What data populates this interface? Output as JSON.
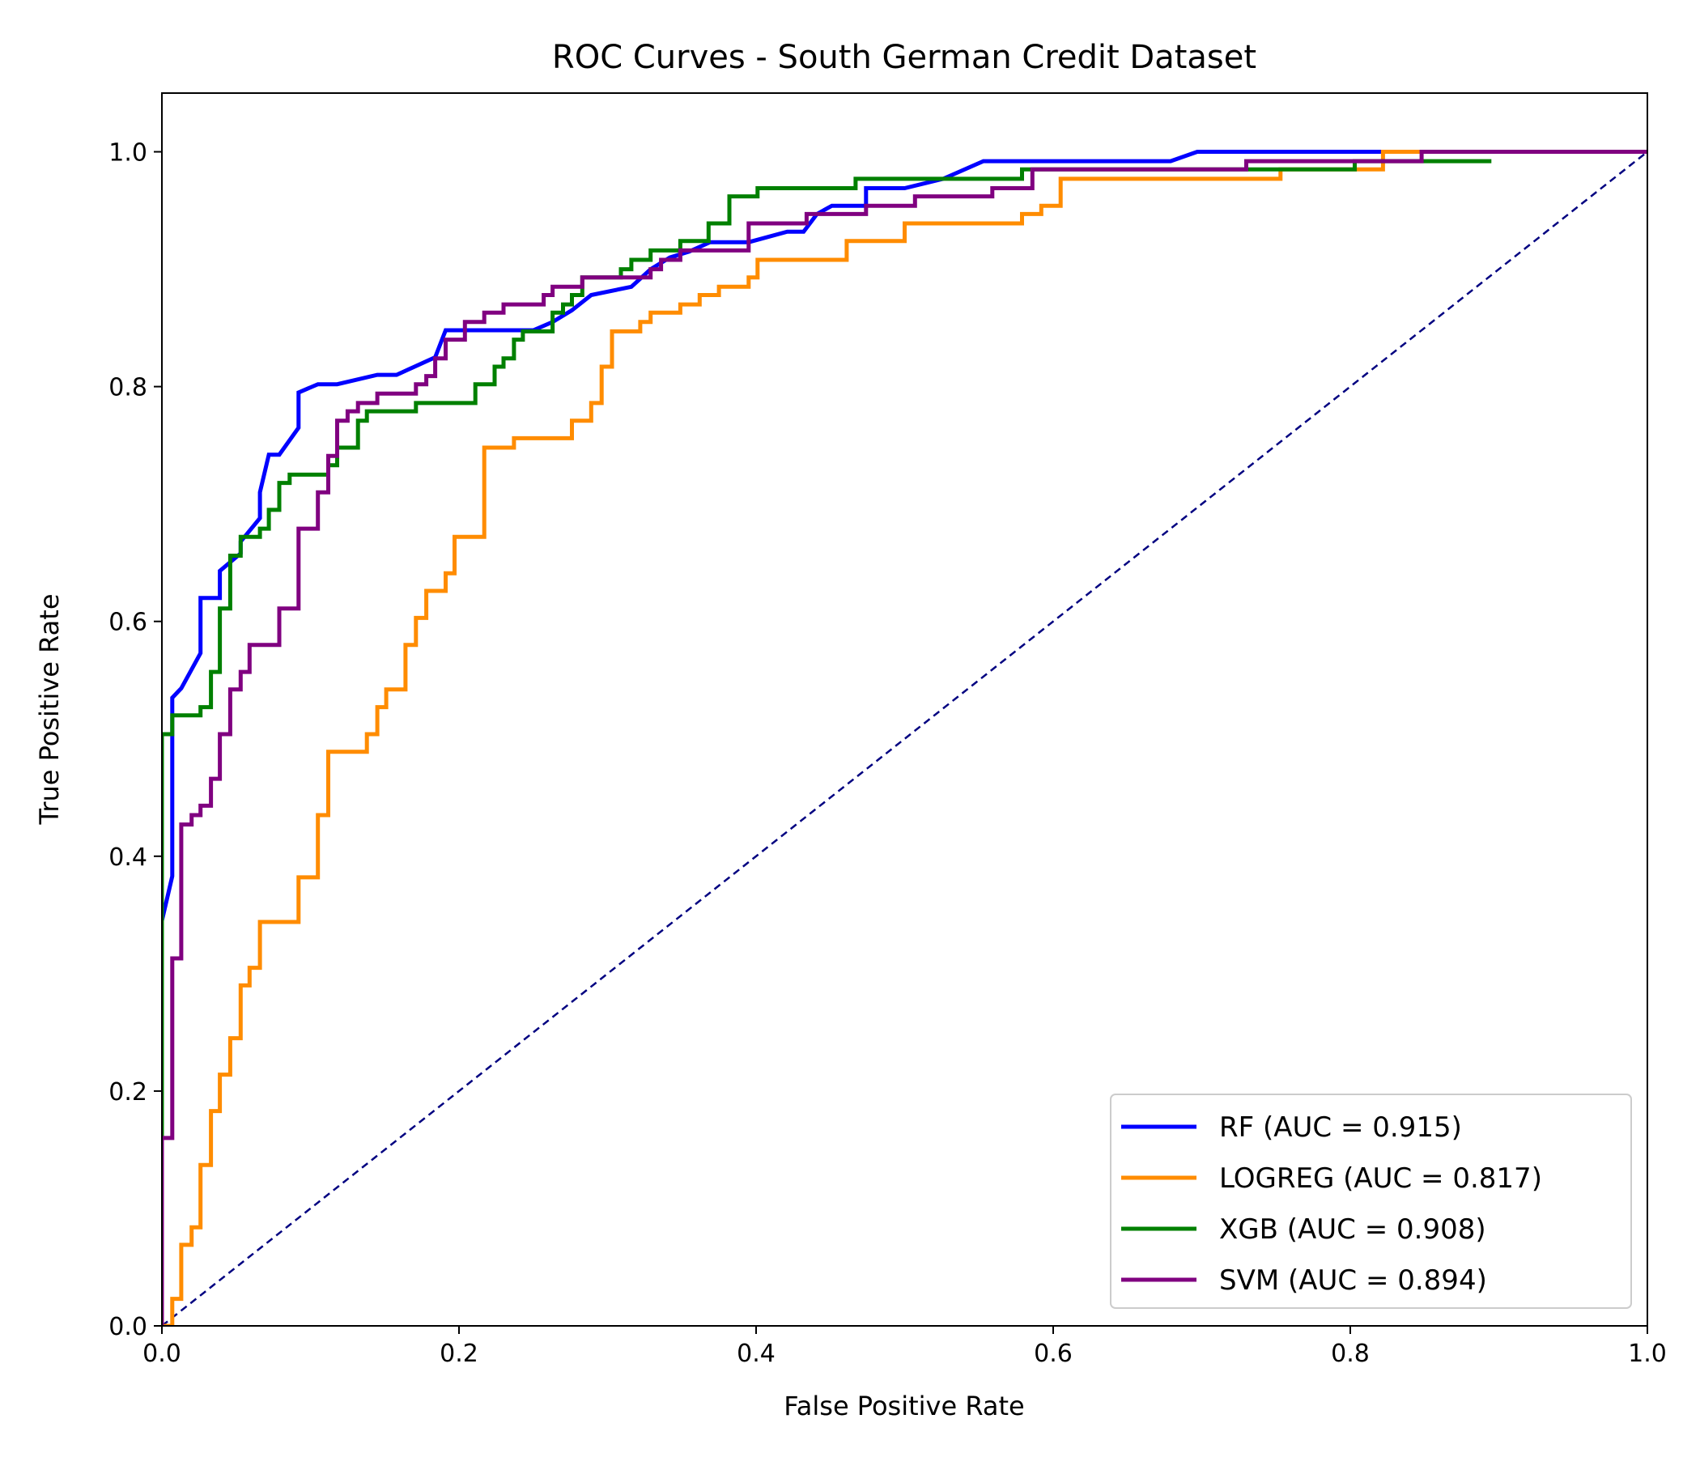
{
  "chart_data": {
    "type": "line",
    "title": "ROC Curves - South German Credit Dataset",
    "xlabel": "False Positive Rate",
    "ylabel": "True Positive Rate",
    "xlim": [
      0.0,
      1.0
    ],
    "ylim": [
      0.0,
      1.05
    ],
    "xticks": [
      0.0,
      0.2,
      0.4,
      0.6,
      0.8,
      1.0
    ],
    "yticks": [
      0.0,
      0.2,
      0.4,
      0.6,
      0.8,
      1.0
    ],
    "xtick_labels": [
      "0.0",
      "0.2",
      "0.4",
      "0.6",
      "0.8",
      "1.0"
    ],
    "ytick_labels": [
      "0.0",
      "0.2",
      "0.4",
      "0.6",
      "0.8",
      "1.0"
    ],
    "grid": false,
    "legend_position": "lower-right",
    "reference_line": {
      "x": [
        0,
        1
      ],
      "y": [
        0,
        1
      ],
      "color": "#000080",
      "style": "dashed"
    },
    "series": [
      {
        "name": "RF (AUC = 0.915)",
        "color": "#0000ff",
        "points": [
          [
            0,
            0.345
          ],
          [
            0.007,
            0.383
          ],
          [
            0.007,
            0.535
          ],
          [
            0.013,
            0.543
          ],
          [
            0.026,
            0.573
          ],
          [
            0.026,
            0.62
          ],
          [
            0.039,
            0.62
          ],
          [
            0.039,
            0.643
          ],
          [
            0.053,
            0.658
          ],
          [
            0.053,
            0.668
          ],
          [
            0.066,
            0.688
          ],
          [
            0.066,
            0.71
          ],
          [
            0.072,
            0.742
          ],
          [
            0.079,
            0.742
          ],
          [
            0.092,
            0.765
          ],
          [
            0.092,
            0.795
          ],
          [
            0.105,
            0.802
          ],
          [
            0.118,
            0.802
          ],
          [
            0.145,
            0.81
          ],
          [
            0.158,
            0.81
          ],
          [
            0.184,
            0.825
          ],
          [
            0.191,
            0.848
          ],
          [
            0.211,
            0.848
          ],
          [
            0.25,
            0.848
          ],
          [
            0.263,
            0.855
          ],
          [
            0.276,
            0.865
          ],
          [
            0.289,
            0.878
          ],
          [
            0.316,
            0.885
          ],
          [
            0.329,
            0.9
          ],
          [
            0.342,
            0.91
          ],
          [
            0.355,
            0.915
          ],
          [
            0.369,
            0.923
          ],
          [
            0.395,
            0.923
          ],
          [
            0.421,
            0.932
          ],
          [
            0.432,
            0.932
          ],
          [
            0.441,
            0.947
          ],
          [
            0.451,
            0.954
          ],
          [
            0.474,
            0.954
          ],
          [
            0.474,
            0.969
          ],
          [
            0.5,
            0.969
          ],
          [
            0.526,
            0.977
          ],
          [
            0.553,
            0.992
          ],
          [
            0.679,
            0.992
          ],
          [
            0.697,
            1.0
          ],
          [
            0.83,
            1.0
          ]
        ]
      },
      {
        "name": "LOGREG (AUC = 0.817)",
        "color": "#ff8c00",
        "points": [
          [
            0,
            0
          ],
          [
            0.007,
            0
          ],
          [
            0.007,
            0.023
          ],
          [
            0.013,
            0.023
          ],
          [
            0.013,
            0.069
          ],
          [
            0.02,
            0.069
          ],
          [
            0.02,
            0.084
          ],
          [
            0.026,
            0.084
          ],
          [
            0.026,
            0.137
          ],
          [
            0.033,
            0.137
          ],
          [
            0.033,
            0.183
          ],
          [
            0.039,
            0.183
          ],
          [
            0.039,
            0.214
          ],
          [
            0.046,
            0.214
          ],
          [
            0.046,
            0.245
          ],
          [
            0.053,
            0.245
          ],
          [
            0.053,
            0.29
          ],
          [
            0.059,
            0.29
          ],
          [
            0.059,
            0.305
          ],
          [
            0.066,
            0.305
          ],
          [
            0.066,
            0.344
          ],
          [
            0.092,
            0.344
          ],
          [
            0.092,
            0.382
          ],
          [
            0.105,
            0.382
          ],
          [
            0.105,
            0.435
          ],
          [
            0.112,
            0.435
          ],
          [
            0.112,
            0.489
          ],
          [
            0.138,
            0.489
          ],
          [
            0.138,
            0.504
          ],
          [
            0.145,
            0.504
          ],
          [
            0.145,
            0.527
          ],
          [
            0.151,
            0.527
          ],
          [
            0.151,
            0.542
          ],
          [
            0.164,
            0.542
          ],
          [
            0.164,
            0.58
          ],
          [
            0.171,
            0.58
          ],
          [
            0.171,
            0.603
          ],
          [
            0.178,
            0.603
          ],
          [
            0.178,
            0.626
          ],
          [
            0.191,
            0.626
          ],
          [
            0.191,
            0.641
          ],
          [
            0.197,
            0.641
          ],
          [
            0.197,
            0.672
          ],
          [
            0.217,
            0.672
          ],
          [
            0.217,
            0.748
          ],
          [
            0.237,
            0.748
          ],
          [
            0.237,
            0.756
          ],
          [
            0.276,
            0.756
          ],
          [
            0.276,
            0.771
          ],
          [
            0.289,
            0.771
          ],
          [
            0.289,
            0.786
          ],
          [
            0.296,
            0.786
          ],
          [
            0.296,
            0.817
          ],
          [
            0.303,
            0.817
          ],
          [
            0.303,
            0.847
          ],
          [
            0.322,
            0.847
          ],
          [
            0.322,
            0.855
          ],
          [
            0.329,
            0.855
          ],
          [
            0.329,
            0.863
          ],
          [
            0.349,
            0.863
          ],
          [
            0.349,
            0.87
          ],
          [
            0.362,
            0.87
          ],
          [
            0.362,
            0.878
          ],
          [
            0.375,
            0.878
          ],
          [
            0.375,
            0.885
          ],
          [
            0.395,
            0.885
          ],
          [
            0.395,
            0.893
          ],
          [
            0.401,
            0.893
          ],
          [
            0.401,
            0.908
          ],
          [
            0.461,
            0.908
          ],
          [
            0.461,
            0.924
          ],
          [
            0.5,
            0.924
          ],
          [
            0.5,
            0.939
          ],
          [
            0.579,
            0.939
          ],
          [
            0.579,
            0.947
          ],
          [
            0.592,
            0.947
          ],
          [
            0.592,
            0.954
          ],
          [
            0.605,
            0.954
          ],
          [
            0.605,
            0.977
          ],
          [
            0.753,
            0.977
          ],
          [
            0.753,
            0.985
          ],
          [
            0.822,
            0.985
          ],
          [
            0.822,
            1.0
          ],
          [
            1.0,
            1.0
          ]
        ]
      },
      {
        "name": "XGB (AUC = 0.908)",
        "color": "#008000",
        "points": [
          [
            0,
            0
          ],
          [
            0,
            0.504
          ],
          [
            0.007,
            0.504
          ],
          [
            0.007,
            0.52
          ],
          [
            0.026,
            0.52
          ],
          [
            0.026,
            0.527
          ],
          [
            0.033,
            0.527
          ],
          [
            0.033,
            0.557
          ],
          [
            0.039,
            0.557
          ],
          [
            0.039,
            0.611
          ],
          [
            0.046,
            0.611
          ],
          [
            0.046,
            0.656
          ],
          [
            0.053,
            0.656
          ],
          [
            0.053,
            0.672
          ],
          [
            0.066,
            0.672
          ],
          [
            0.066,
            0.679
          ],
          [
            0.072,
            0.679
          ],
          [
            0.072,
            0.695
          ],
          [
            0.079,
            0.695
          ],
          [
            0.079,
            0.718
          ],
          [
            0.086,
            0.718
          ],
          [
            0.086,
            0.725
          ],
          [
            0.112,
            0.725
          ],
          [
            0.112,
            0.733
          ],
          [
            0.118,
            0.733
          ],
          [
            0.118,
            0.748
          ],
          [
            0.132,
            0.748
          ],
          [
            0.132,
            0.771
          ],
          [
            0.138,
            0.771
          ],
          [
            0.138,
            0.779
          ],
          [
            0.145,
            0.779
          ],
          [
            0.145,
            0.779
          ],
          [
            0.171,
            0.779
          ],
          [
            0.171,
            0.786
          ],
          [
            0.211,
            0.786
          ],
          [
            0.211,
            0.802
          ],
          [
            0.224,
            0.802
          ],
          [
            0.224,
            0.817
          ],
          [
            0.23,
            0.817
          ],
          [
            0.23,
            0.824
          ],
          [
            0.237,
            0.824
          ],
          [
            0.237,
            0.84
          ],
          [
            0.243,
            0.84
          ],
          [
            0.243,
            0.847
          ],
          [
            0.263,
            0.847
          ],
          [
            0.263,
            0.863
          ],
          [
            0.27,
            0.863
          ],
          [
            0.27,
            0.87
          ],
          [
            0.276,
            0.87
          ],
          [
            0.276,
            0.878
          ],
          [
            0.283,
            0.878
          ],
          [
            0.283,
            0.893
          ],
          [
            0.309,
            0.893
          ],
          [
            0.309,
            0.9
          ],
          [
            0.316,
            0.9
          ],
          [
            0.316,
            0.908
          ],
          [
            0.329,
            0.908
          ],
          [
            0.329,
            0.916
          ],
          [
            0.349,
            0.916
          ],
          [
            0.349,
            0.924
          ],
          [
            0.368,
            0.924
          ],
          [
            0.368,
            0.939
          ],
          [
            0.382,
            0.939
          ],
          [
            0.382,
            0.962
          ],
          [
            0.401,
            0.962
          ],
          [
            0.401,
            0.969
          ],
          [
            0.467,
            0.969
          ],
          [
            0.467,
            0.977
          ],
          [
            0.579,
            0.977
          ],
          [
            0.579,
            0.985
          ],
          [
            0.803,
            0.985
          ],
          [
            0.803,
            0.992
          ],
          [
            0.895,
            0.992
          ]
        ]
      },
      {
        "name": "SVM (AUC = 0.894)",
        "color": "#800080",
        "points": [
          [
            0,
            0
          ],
          [
            0,
            0.16
          ],
          [
            0.007,
            0.16
          ],
          [
            0.007,
            0.313
          ],
          [
            0.013,
            0.313
          ],
          [
            0.013,
            0.427
          ],
          [
            0.02,
            0.427
          ],
          [
            0.02,
            0.435
          ],
          [
            0.026,
            0.435
          ],
          [
            0.026,
            0.443
          ],
          [
            0.033,
            0.443
          ],
          [
            0.033,
            0.466
          ],
          [
            0.039,
            0.466
          ],
          [
            0.039,
            0.504
          ],
          [
            0.046,
            0.504
          ],
          [
            0.046,
            0.542
          ],
          [
            0.053,
            0.542
          ],
          [
            0.053,
            0.557
          ],
          [
            0.059,
            0.557
          ],
          [
            0.059,
            0.58
          ],
          [
            0.079,
            0.58
          ],
          [
            0.079,
            0.611
          ],
          [
            0.092,
            0.611
          ],
          [
            0.092,
            0.679
          ],
          [
            0.105,
            0.679
          ],
          [
            0.105,
            0.71
          ],
          [
            0.112,
            0.71
          ],
          [
            0.112,
            0.741
          ],
          [
            0.118,
            0.741
          ],
          [
            0.118,
            0.771
          ],
          [
            0.125,
            0.771
          ],
          [
            0.125,
            0.779
          ],
          [
            0.132,
            0.779
          ],
          [
            0.132,
            0.786
          ],
          [
            0.145,
            0.786
          ],
          [
            0.145,
            0.794
          ],
          [
            0.171,
            0.794
          ],
          [
            0.171,
            0.802
          ],
          [
            0.178,
            0.802
          ],
          [
            0.178,
            0.809
          ],
          [
            0.184,
            0.809
          ],
          [
            0.184,
            0.824
          ],
          [
            0.191,
            0.824
          ],
          [
            0.191,
            0.84
          ],
          [
            0.204,
            0.84
          ],
          [
            0.204,
            0.855
          ],
          [
            0.217,
            0.855
          ],
          [
            0.217,
            0.863
          ],
          [
            0.23,
            0.863
          ],
          [
            0.23,
            0.87
          ],
          [
            0.257,
            0.87
          ],
          [
            0.257,
            0.878
          ],
          [
            0.263,
            0.878
          ],
          [
            0.263,
            0.885
          ],
          [
            0.283,
            0.885
          ],
          [
            0.283,
            0.893
          ],
          [
            0.329,
            0.893
          ],
          [
            0.329,
            0.9
          ],
          [
            0.336,
            0.9
          ],
          [
            0.336,
            0.908
          ],
          [
            0.349,
            0.908
          ],
          [
            0.349,
            0.916
          ],
          [
            0.395,
            0.916
          ],
          [
            0.395,
            0.939
          ],
          [
            0.434,
            0.939
          ],
          [
            0.434,
            0.947
          ],
          [
            0.474,
            0.947
          ],
          [
            0.474,
            0.954
          ],
          [
            0.507,
            0.954
          ],
          [
            0.507,
            0.962
          ],
          [
            0.559,
            0.962
          ],
          [
            0.559,
            0.969
          ],
          [
            0.586,
            0.969
          ],
          [
            0.586,
            0.985
          ],
          [
            0.73,
            0.985
          ],
          [
            0.73,
            0.992
          ],
          [
            0.848,
            0.992
          ],
          [
            0.848,
            1.0
          ],
          [
            1.0,
            1.0
          ]
        ]
      }
    ]
  }
}
